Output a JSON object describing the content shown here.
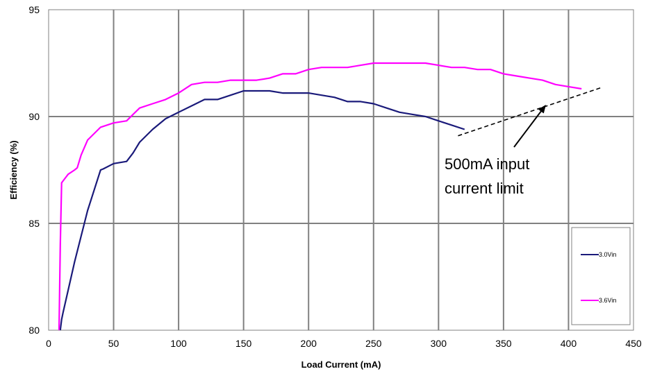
{
  "chart_data": {
    "type": "line",
    "title": "",
    "xlabel": "Load Current (mA)",
    "ylabel": "Efficiency (%)",
    "xlim": [
      0,
      450
    ],
    "ylim": [
      80,
      95
    ],
    "x_ticks": [
      "0",
      "50",
      "100",
      "150",
      "200",
      "250",
      "300",
      "350",
      "400",
      "450"
    ],
    "y_ticks": [
      "80",
      "85",
      "90",
      "95"
    ],
    "grid": true,
    "legend_position": "right",
    "series": [
      {
        "name": "3.0Vin",
        "color": "#1a1a7a",
        "x": [
          9,
          10,
          11,
          20,
          30,
          40,
          42,
          50,
          60,
          65,
          70,
          80,
          90,
          100,
          110,
          120,
          130,
          140,
          150,
          160,
          170,
          180,
          190,
          200,
          210,
          220,
          230,
          240,
          250,
          260,
          270,
          280,
          290,
          300,
          310,
          320
        ],
        "y": [
          80,
          80.5,
          80.8,
          83.2,
          85.6,
          87.5,
          87.55,
          87.8,
          87.9,
          88.3,
          88.8,
          89.4,
          89.9,
          90.2,
          90.5,
          90.8,
          90.8,
          91.0,
          91.2,
          91.2,
          91.2,
          91.1,
          91.1,
          91.1,
          91.0,
          90.9,
          90.7,
          90.7,
          90.6,
          90.4,
          90.2,
          90.1,
          90.0,
          89.8,
          89.6,
          89.4
        ]
      },
      {
        "name": "3.6Vin",
        "color": "#ff00ff",
        "x": [
          8,
          9,
          10,
          15,
          20,
          22,
          25,
          30,
          40,
          50,
          60,
          65,
          70,
          80,
          90,
          100,
          110,
          120,
          130,
          140,
          150,
          160,
          170,
          180,
          190,
          200,
          210,
          220,
          230,
          240,
          250,
          260,
          270,
          280,
          290,
          300,
          310,
          320,
          330,
          340,
          350,
          360,
          370,
          380,
          390,
          400,
          410
        ],
        "y": [
          80,
          84,
          86.9,
          87.3,
          87.5,
          87.6,
          88.2,
          88.9,
          89.5,
          89.7,
          89.8,
          90.1,
          90.4,
          90.6,
          90.8,
          91.1,
          91.5,
          91.6,
          91.6,
          91.7,
          91.7,
          91.7,
          91.8,
          92.0,
          92.0,
          92.2,
          92.3,
          92.3,
          92.3,
          92.4,
          92.5,
          92.5,
          92.5,
          92.5,
          92.5,
          92.4,
          92.3,
          92.3,
          92.2,
          92.2,
          92.0,
          91.9,
          91.8,
          91.7,
          91.5,
          91.4,
          91.3
        ]
      }
    ],
    "annotations": [
      {
        "text_lines": [
          "500mA input",
          "current limit"
        ],
        "dashed_line": {
          "x": [
            315,
            425
          ],
          "y": [
            89.1,
            91.35
          ]
        },
        "arrow_target": {
          "x": 382,
          "y": 90.5
        },
        "text_anchor": {
          "x": 305,
          "y": 87.9
        }
      }
    ]
  }
}
